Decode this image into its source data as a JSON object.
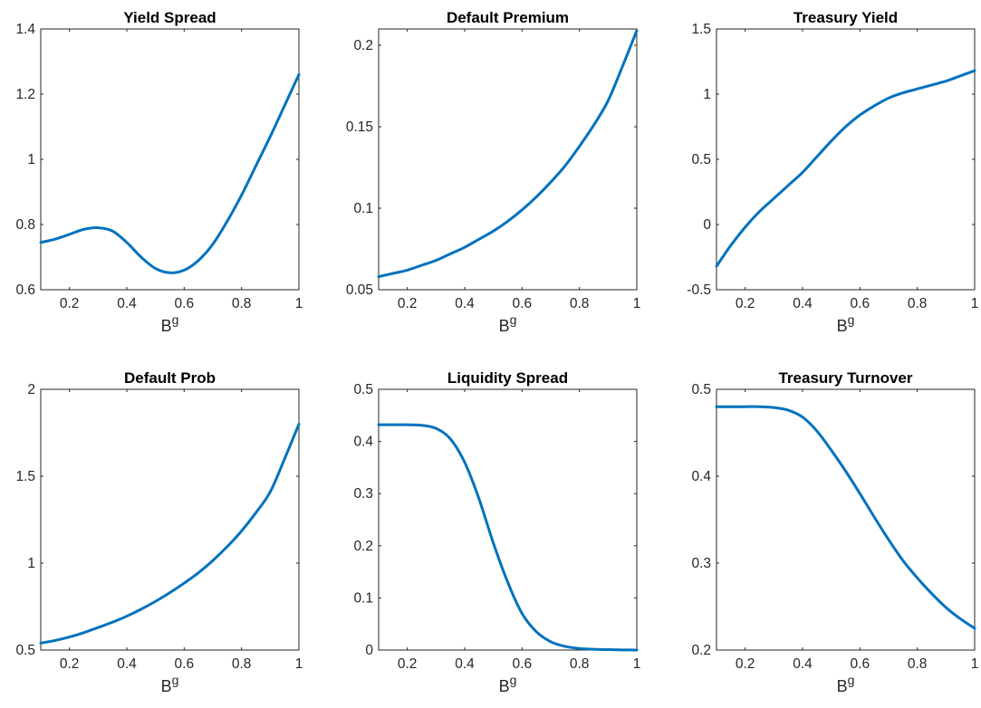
{
  "colors": {
    "line": "#0072BD",
    "axis": "#262626"
  },
  "chart_data": [
    {
      "type": "line",
      "title": "Yield Spread",
      "xlabel": "B",
      "xlabel_sup": "g",
      "xlim": [
        0.1,
        1
      ],
      "ylim": [
        0.6,
        1.4
      ],
      "xticks": [
        0.2,
        0.4,
        0.6,
        0.8,
        1
      ],
      "xtick_labels": [
        "0.2",
        "0.4",
        "0.6",
        "0.8",
        "1"
      ],
      "yticks": [
        0.6,
        0.8,
        1,
        1.2,
        1.4
      ],
      "ytick_labels": [
        "0.6",
        "0.8",
        "1",
        "1.2",
        "1.4"
      ],
      "series": [
        {
          "x": [
            0.1,
            0.15,
            0.2,
            0.25,
            0.3,
            0.35,
            0.4,
            0.45,
            0.5,
            0.55,
            0.6,
            0.65,
            0.7,
            0.75,
            0.8,
            0.85,
            0.9,
            0.95,
            1.0
          ],
          "y": [
            0.745,
            0.755,
            0.77,
            0.785,
            0.79,
            0.78,
            0.745,
            0.7,
            0.665,
            0.652,
            0.66,
            0.69,
            0.74,
            0.81,
            0.89,
            0.98,
            1.07,
            1.165,
            1.26
          ]
        }
      ]
    },
    {
      "type": "line",
      "title": "Default Premium",
      "xlabel": "B",
      "xlabel_sup": "g",
      "xlim": [
        0.1,
        1
      ],
      "ylim": [
        0.05,
        0.21
      ],
      "xticks": [
        0.2,
        0.4,
        0.6,
        0.8,
        1
      ],
      "xtick_labels": [
        "0.2",
        "0.4",
        "0.6",
        "0.8",
        "1"
      ],
      "yticks": [
        0.05,
        0.1,
        0.15,
        0.2
      ],
      "ytick_labels": [
        "0.05",
        "0.1",
        "0.15",
        "0.2"
      ],
      "series": [
        {
          "x": [
            0.1,
            0.15,
            0.2,
            0.25,
            0.3,
            0.35,
            0.4,
            0.45,
            0.5,
            0.55,
            0.6,
            0.65,
            0.7,
            0.75,
            0.8,
            0.85,
            0.9,
            0.95,
            1.0
          ],
          "y": [
            0.058,
            0.06,
            0.062,
            0.065,
            0.068,
            0.072,
            0.076,
            0.081,
            0.086,
            0.092,
            0.099,
            0.107,
            0.116,
            0.126,
            0.138,
            0.151,
            0.166,
            0.187,
            0.209
          ]
        }
      ]
    },
    {
      "type": "line",
      "title": "Treasury Yield",
      "xlabel": "B",
      "xlabel_sup": "g",
      "xlim": [
        0.1,
        1
      ],
      "ylim": [
        -0.5,
        1.5
      ],
      "xticks": [
        0.2,
        0.4,
        0.6,
        0.8,
        1
      ],
      "xtick_labels": [
        "0.2",
        "0.4",
        "0.6",
        "0.8",
        "1"
      ],
      "yticks": [
        -0.5,
        0,
        0.5,
        1,
        1.5
      ],
      "ytick_labels": [
        "-0.5",
        "0",
        "0.5",
        "1",
        "1.5"
      ],
      "series": [
        {
          "x": [
            0.1,
            0.15,
            0.2,
            0.25,
            0.3,
            0.35,
            0.4,
            0.45,
            0.5,
            0.55,
            0.6,
            0.65,
            0.7,
            0.75,
            0.8,
            0.85,
            0.9,
            0.95,
            1.0
          ],
          "y": [
            -0.32,
            -0.16,
            -0.02,
            0.1,
            0.2,
            0.3,
            0.4,
            0.52,
            0.64,
            0.75,
            0.84,
            0.91,
            0.97,
            1.01,
            1.04,
            1.07,
            1.1,
            1.14,
            1.18
          ]
        }
      ]
    },
    {
      "type": "line",
      "title": "Default Prob",
      "xlabel": "B",
      "xlabel_sup": "g",
      "xlim": [
        0.1,
        1
      ],
      "ylim": [
        0.5,
        2
      ],
      "xticks": [
        0.2,
        0.4,
        0.6,
        0.8,
        1
      ],
      "xtick_labels": [
        "0.2",
        "0.4",
        "0.6",
        "0.8",
        "1"
      ],
      "yticks": [
        0.5,
        1,
        1.5,
        2
      ],
      "ytick_labels": [
        "0.5",
        "1",
        "1.5",
        "2"
      ],
      "series": [
        {
          "x": [
            0.1,
            0.15,
            0.2,
            0.25,
            0.3,
            0.35,
            0.4,
            0.45,
            0.5,
            0.55,
            0.6,
            0.65,
            0.7,
            0.75,
            0.8,
            0.85,
            0.9,
            0.95,
            1.0
          ],
          "y": [
            0.54,
            0.555,
            0.575,
            0.6,
            0.63,
            0.66,
            0.695,
            0.735,
            0.78,
            0.83,
            0.885,
            0.945,
            1.015,
            1.095,
            1.185,
            1.29,
            1.41,
            1.6,
            1.8
          ]
        }
      ]
    },
    {
      "type": "line",
      "title": "Liquidity Spread",
      "xlabel": "B",
      "xlabel_sup": "g",
      "xlim": [
        0.1,
        1
      ],
      "ylim": [
        0,
        0.5
      ],
      "xticks": [
        0.2,
        0.4,
        0.6,
        0.8,
        1
      ],
      "xtick_labels": [
        "0.2",
        "0.4",
        "0.6",
        "0.8",
        "1"
      ],
      "yticks": [
        0,
        0.1,
        0.2,
        0.3,
        0.4,
        0.5
      ],
      "ytick_labels": [
        "0",
        "0.1",
        "0.2",
        "0.3",
        "0.4",
        "0.5"
      ],
      "series": [
        {
          "x": [
            0.1,
            0.15,
            0.2,
            0.25,
            0.3,
            0.35,
            0.4,
            0.45,
            0.5,
            0.55,
            0.6,
            0.65,
            0.7,
            0.75,
            0.8,
            0.85,
            0.9,
            0.95,
            1.0
          ],
          "y": [
            0.432,
            0.432,
            0.432,
            0.431,
            0.425,
            0.405,
            0.36,
            0.29,
            0.205,
            0.13,
            0.07,
            0.035,
            0.016,
            0.007,
            0.003,
            0.0015,
            0.0008,
            0.0003,
            0.0001
          ]
        }
      ]
    },
    {
      "type": "line",
      "title": "Treasury Turnover",
      "xlabel": "B",
      "xlabel_sup": "g",
      "xlim": [
        0.1,
        1
      ],
      "ylim": [
        0.2,
        0.5
      ],
      "xticks": [
        0.2,
        0.4,
        0.6,
        0.8,
        1
      ],
      "xtick_labels": [
        "0.2",
        "0.4",
        "0.6",
        "0.8",
        "1"
      ],
      "yticks": [
        0.2,
        0.3,
        0.4,
        0.5
      ],
      "ytick_labels": [
        "0.2",
        "0.3",
        "0.4",
        "0.5"
      ],
      "series": [
        {
          "x": [
            0.1,
            0.15,
            0.2,
            0.25,
            0.3,
            0.35,
            0.4,
            0.45,
            0.5,
            0.55,
            0.6,
            0.65,
            0.7,
            0.75,
            0.8,
            0.85,
            0.9,
            0.95,
            1.0
          ],
          "y": [
            0.48,
            0.48,
            0.48,
            0.48,
            0.479,
            0.476,
            0.468,
            0.452,
            0.43,
            0.406,
            0.38,
            0.353,
            0.327,
            0.303,
            0.283,
            0.265,
            0.249,
            0.236,
            0.225
          ]
        }
      ]
    }
  ]
}
